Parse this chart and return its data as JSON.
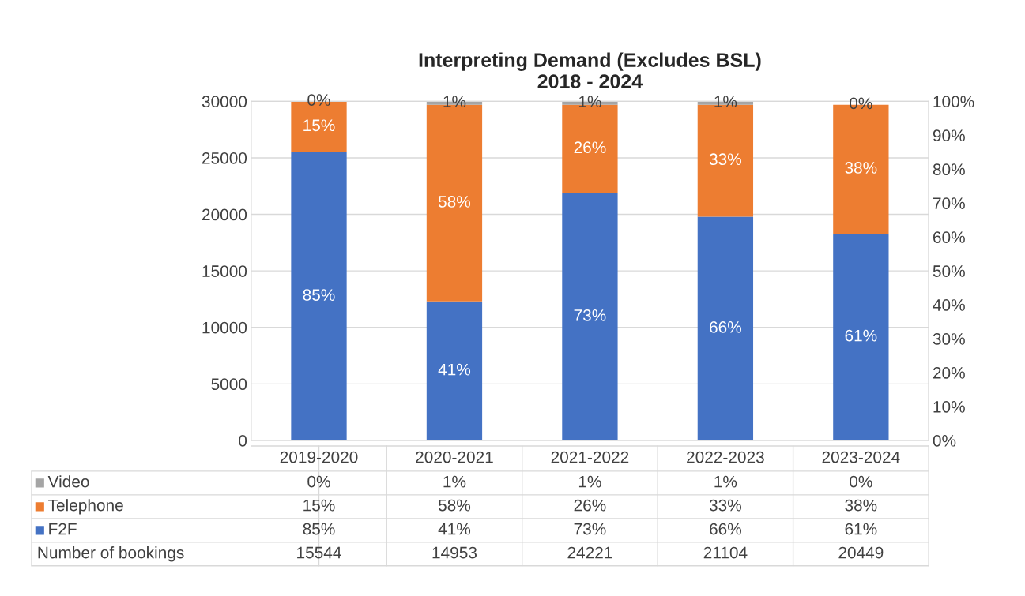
{
  "chart_data": {
    "type": "bar",
    "title": "Interpreting Demand (Excludes BSL)\n2018 - 2024",
    "categories": [
      "2019-2020",
      "2020-2021",
      "2021-2022",
      "2022-2023",
      "2023-2024"
    ],
    "stacked": true,
    "series": [
      {
        "name": "F2F",
        "color": "#4472c4",
        "axis": "y2",
        "values": [
          85,
          41,
          73,
          66,
          61
        ],
        "value_labels": [
          "85%",
          "41%",
          "73%",
          "66%",
          "61%"
        ]
      },
      {
        "name": "Telephone",
        "color": "#ed7d31",
        "axis": "y2",
        "values": [
          15,
          58,
          26,
          33,
          38
        ],
        "value_labels": [
          "15%",
          "58%",
          "26%",
          "33%",
          "38%"
        ]
      },
      {
        "name": "Video",
        "color": "#a5a5a5",
        "axis": "y2",
        "values": [
          0,
          1,
          1,
          1,
          0
        ],
        "value_labels": [
          "0%",
          "1%",
          "1%",
          "1%",
          "0%"
        ]
      }
    ],
    "annotations": [
      "Number of bookings",
      "15544",
      "14953",
      "24221",
      "21104",
      "20449"
    ],
    "ylim": [
      0,
      30000
    ],
    "yticks": [
      0,
      5000,
      10000,
      15000,
      20000,
      25000,
      30000
    ],
    "y2lim": [
      0,
      100
    ],
    "y2ticks": [
      {
        "value": 0,
        "label": "0%"
      },
      {
        "value": 10,
        "label": "10%"
      },
      {
        "value": 20,
        "label": "20%"
      },
      {
        "value": 30,
        "label": "30%"
      },
      {
        "value": 40,
        "label": "40%"
      },
      {
        "value": 50,
        "label": "50%"
      },
      {
        "value": 60,
        "label": "60%"
      },
      {
        "value": 70,
        "label": "70%"
      },
      {
        "value": 80,
        "label": "80%"
      },
      {
        "value": 90,
        "label": "90%"
      },
      {
        "value": 100,
        "label": "100%"
      }
    ],
    "grid": "y",
    "legend": "bottom"
  }
}
